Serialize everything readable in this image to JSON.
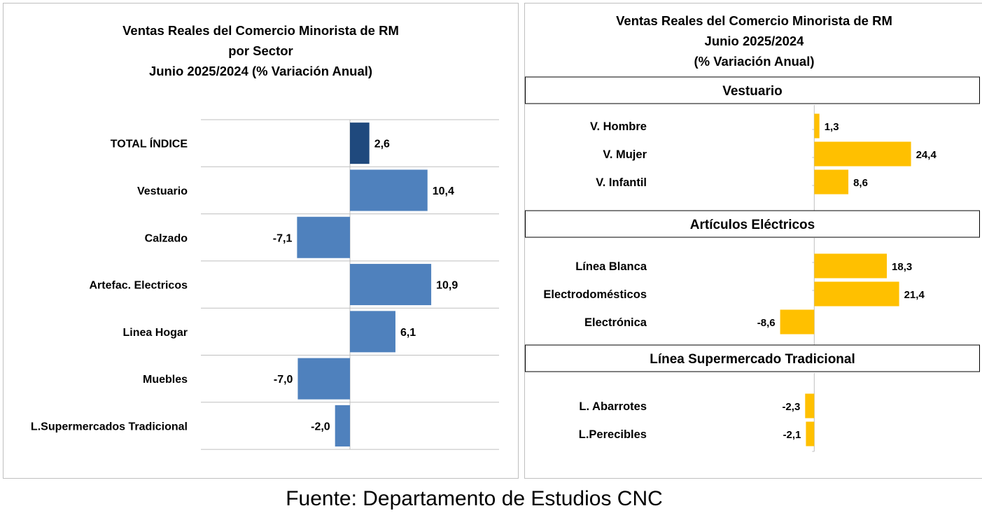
{
  "chart_data": [
    {
      "type": "bar",
      "orientation": "horizontal",
      "title_lines": [
        "Ventas Reales del Comercio Minorista de RM",
        "por Sector",
        "Junio 2025/2024 (% Variación Anual)"
      ],
      "categories": [
        "TOTAL ÍNDICE",
        "Vestuario",
        "Calzado",
        "Artefac. Electricos",
        "Linea Hogar",
        "Muebles",
        "L.Supermercados Tradicional"
      ],
      "values": [
        2.6,
        10.4,
        -7.1,
        10.9,
        6.1,
        -7.0,
        -2.0
      ],
      "value_labels": [
        "2,6",
        "10,4",
        "-7,1",
        "10,9",
        "6,1",
        "-7,0",
        "-2,0"
      ],
      "xlim": [
        -20,
        20
      ],
      "grid": true,
      "colors": {
        "total": "#1f497d",
        "bars": "#4f81bd",
        "grid": "#bfbfbf"
      }
    },
    {
      "type": "bar",
      "orientation": "horizontal",
      "title_lines": [
        "Ventas Reales del Comercio Minorista de RM",
        "Junio 2025/2024",
        "(% Variación Anual)"
      ],
      "groups": [
        {
          "title": "Vestuario",
          "categories": [
            "V. Hombre",
            "V. Mujer",
            "V. Infantil"
          ],
          "values": [
            1.3,
            24.4,
            8.6
          ],
          "value_labels": [
            "1,3",
            "24,4",
            "8,6"
          ]
        },
        {
          "title": "Artículos Eléctricos",
          "categories": [
            "Línea Blanca",
            "Electrodomésticos",
            "Electrónica"
          ],
          "values": [
            18.3,
            21.4,
            -8.6
          ],
          "value_labels": [
            "18,3",
            "21,4",
            "-8,6"
          ]
        },
        {
          "title": "Línea Supermercado Tradicional",
          "categories": [
            "L. Abarrotes",
            "L.Perecibles"
          ],
          "values": [
            -2.3,
            -2.1
          ],
          "value_labels": [
            "-2,3",
            "-2,1"
          ]
        }
      ],
      "xlim": [
        -20,
        40
      ],
      "grid": false,
      "colors": {
        "bars": "#ffc000",
        "axis": "#bfbfbf",
        "box_border": "#000000"
      }
    }
  ],
  "source": "Fuente: Departamento de Estudios CNC"
}
